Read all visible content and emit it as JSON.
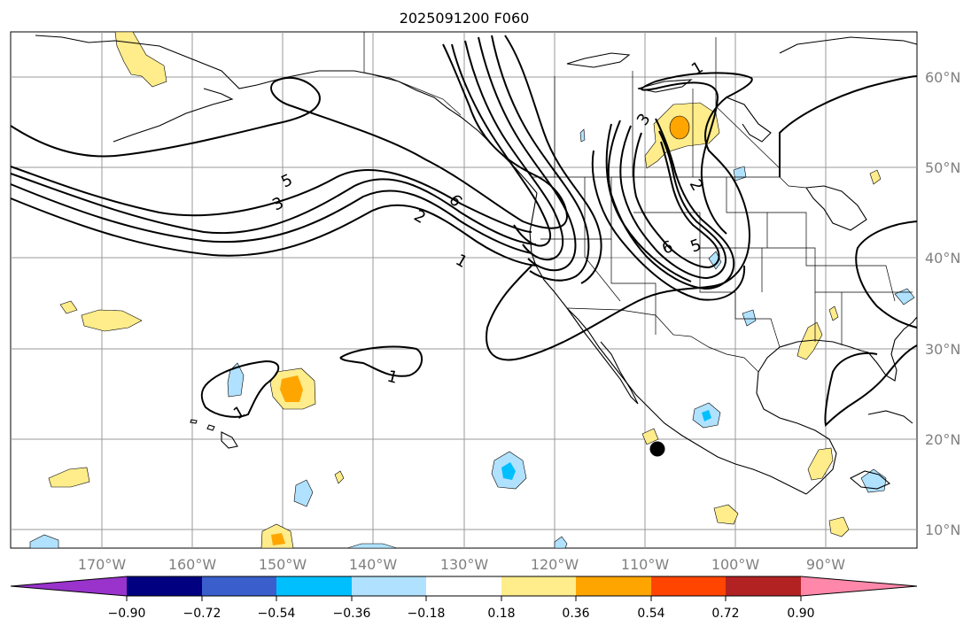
{
  "title": "2025091200 F060",
  "map": {
    "lon_labels": [
      "170°W",
      "160°W",
      "150°W",
      "140°W",
      "130°W",
      "120°W",
      "110°W",
      "100°W",
      "90°W"
    ],
    "lat_labels": [
      "60°N",
      "50°N",
      "40°N",
      "30°N",
      "20°N",
      "10°N"
    ],
    "contour_labels": [
      "1",
      "2",
      "3",
      "5",
      "6",
      "1",
      "1",
      "3",
      "6",
      "5",
      "2",
      "1"
    ],
    "marker": "black-dot"
  },
  "colorbar": {
    "tick_labels": [
      "−0.90",
      "−0.72",
      "−0.54",
      "−0.36",
      "−0.18",
      "0.18",
      "0.36",
      "0.54",
      "0.72",
      "0.90"
    ],
    "colors": [
      "#9933cc",
      "#000080",
      "#3a5fcd",
      "#00bfff",
      "#b0e2ff",
      "#ffffff",
      "#ffec8b",
      "#ffa500",
      "#ff4500",
      "#b22222",
      "#ff88aa",
      "#ff88aa"
    ]
  },
  "styles": {
    "grid_color": "#999999",
    "contour_color": "#000000",
    "label_color": "#808080"
  }
}
